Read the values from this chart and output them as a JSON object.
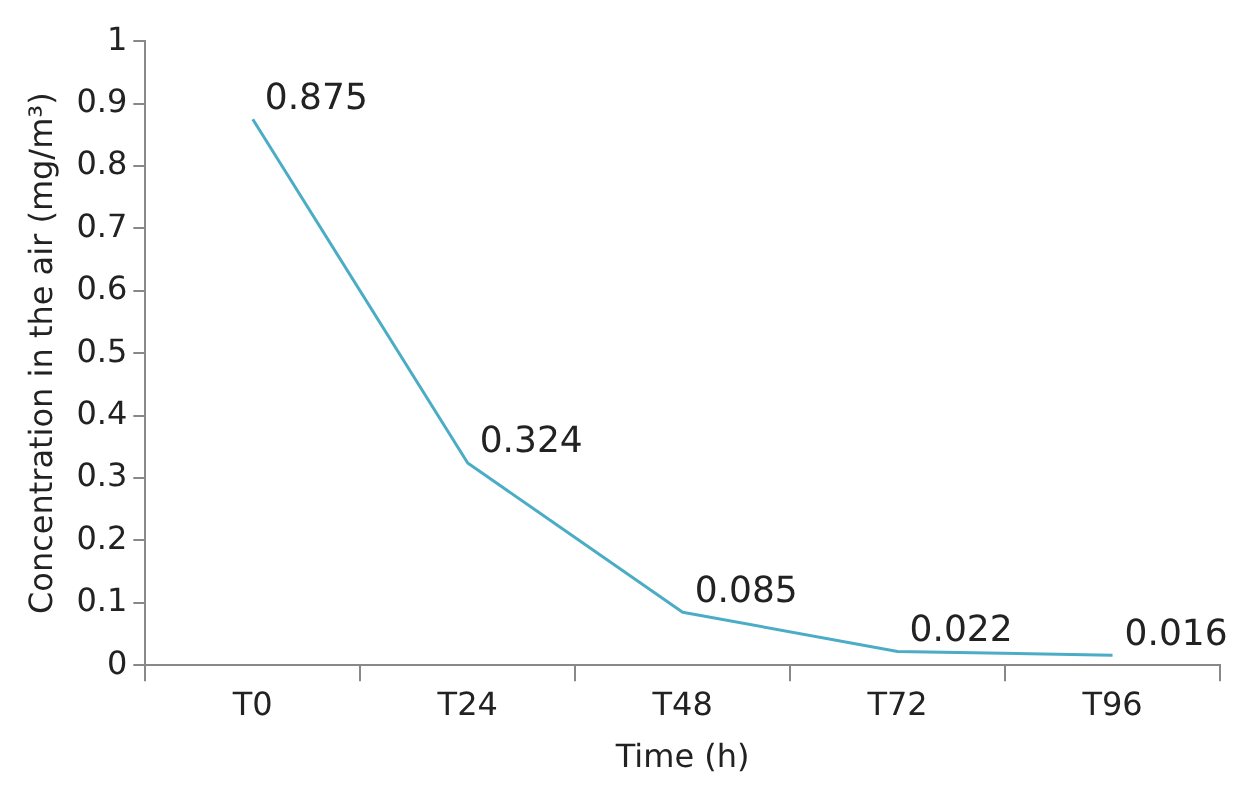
{
  "chart_data": {
    "type": "line",
    "xlabel": "Time (h)",
    "ylabel": "Concentration in the air (mg/m³)",
    "categories": [
      "T0",
      "T24",
      "T48",
      "T72",
      "T96"
    ],
    "series": [
      {
        "color": "#4bacc6",
        "values": [
          0.875,
          0.324,
          0.085,
          0.022,
          0.016
        ]
      }
    ],
    "ylim": [
      0,
      1
    ],
    "yticks": [
      0,
      0.1,
      0.2,
      0.3,
      0.4,
      0.5,
      0.6,
      0.7,
      0.8,
      0.9,
      1
    ],
    "grid": false,
    "legend": false,
    "marker": "none",
    "line_style": "solid",
    "data_labels": true
  }
}
